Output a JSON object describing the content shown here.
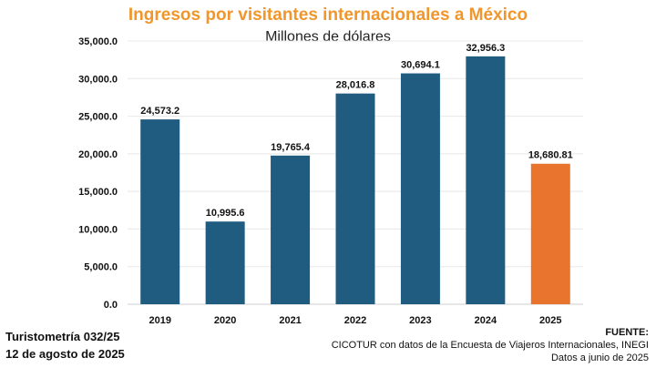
{
  "title": "Ingresos por visitantes internacionales a México",
  "subtitle": "Millones de dólares",
  "colors": {
    "title": "#f0962b",
    "bar": "#1f5c80",
    "highlight": "#e8742e",
    "grid": "#e8e8e8"
  },
  "footer": {
    "left_line1": "Turistometría 032/25",
    "left_line2": "12 de agosto de 2025",
    "source_label": "FUENTE:",
    "source_line1": "CICOTUR con datos de la Encuesta de Viajeros Internacionales, INEGI",
    "source_line2": "Datos a junio de 2025"
  },
  "chart_data": {
    "type": "bar",
    "title": "Ingresos por visitantes internacionales a México",
    "subtitle": "Millones de dólares",
    "categories": [
      "2019",
      "2020",
      "2021",
      "2022",
      "2023",
      "2024",
      "2025"
    ],
    "values": [
      24573.2,
      10995.6,
      19765.4,
      28016.8,
      30694.1,
      32956.3,
      18680.81
    ],
    "data_labels": [
      "24,573.2",
      "10,995.6",
      "19,765.4",
      "28,016.8",
      "30,694.1",
      "32,956.3",
      "18,680.81"
    ],
    "highlight_index": 6,
    "ylim": [
      0,
      35000
    ],
    "yticks": [
      0,
      5000,
      10000,
      15000,
      20000,
      25000,
      30000,
      35000
    ],
    "ytick_labels": [
      "0.0",
      "5,000.0",
      "10,000.0",
      "15,000.0",
      "20,000.0",
      "25,000.0",
      "30,000.0",
      "35,000.0"
    ],
    "grid": true,
    "legend": "none"
  }
}
